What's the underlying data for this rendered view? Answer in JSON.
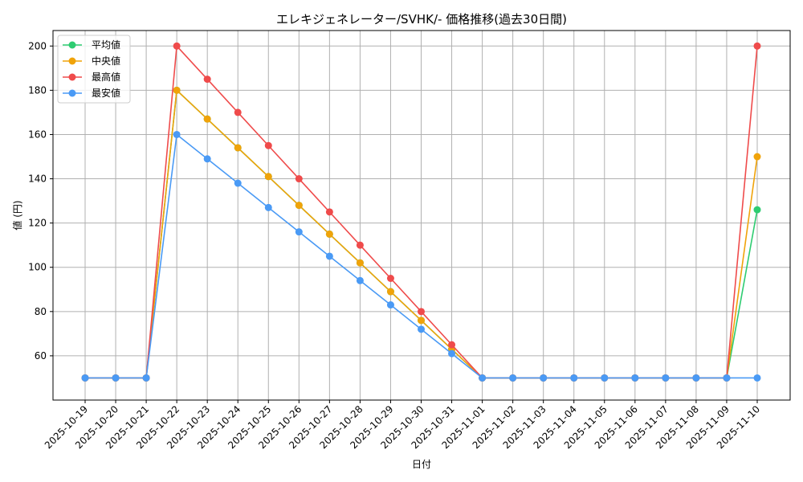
{
  "chart_data": {
    "type": "line",
    "title": "エレキジェネレーター/SVHK/- 価格推移(過去30日間)",
    "xlabel": "日付",
    "ylabel": "値 (円)",
    "ylim": [
      40,
      207
    ],
    "yticks": [
      60,
      80,
      100,
      120,
      140,
      160,
      180,
      200
    ],
    "grid": true,
    "legend_position": "top-left",
    "categories": [
      "2025-10-19",
      "2025-10-20",
      "2025-10-21",
      "2025-10-22",
      "2025-10-23",
      "2025-10-24",
      "2025-10-25",
      "2025-10-26",
      "2025-10-27",
      "2025-10-28",
      "2025-10-29",
      "2025-10-30",
      "2025-10-31",
      "2025-11-01",
      "2025-11-02",
      "2025-11-03",
      "2025-11-04",
      "2025-11-05",
      "2025-11-06",
      "2025-11-07",
      "2025-11-08",
      "2025-11-09",
      "2025-11-10"
    ],
    "series": [
      {
        "name": "平均値",
        "color": "#2ecc71",
        "values": [
          50,
          50,
          50,
          180,
          167,
          154,
          141,
          128,
          115,
          102,
          89,
          76,
          63,
          50,
          50,
          50,
          50,
          50,
          50,
          50,
          50,
          50,
          126
        ]
      },
      {
        "name": "中央値",
        "color": "#f0a30a",
        "values": [
          50,
          50,
          50,
          180,
          167,
          154,
          141,
          128,
          115,
          102,
          89,
          76,
          63,
          50,
          50,
          50,
          50,
          50,
          50,
          50,
          50,
          50,
          150
        ]
      },
      {
        "name": "最高値",
        "color": "#ef4b4b",
        "values": [
          50,
          50,
          50,
          200,
          185,
          170,
          155,
          140,
          125,
          110,
          95,
          80,
          65,
          50,
          50,
          50,
          50,
          50,
          50,
          50,
          50,
          50,
          200
        ]
      },
      {
        "name": "最安値",
        "color": "#4a9af5",
        "values": [
          50,
          50,
          50,
          160,
          149,
          138,
          127,
          116,
          105,
          94,
          83,
          72,
          61,
          50,
          50,
          50,
          50,
          50,
          50,
          50,
          50,
          50,
          50
        ]
      }
    ]
  }
}
